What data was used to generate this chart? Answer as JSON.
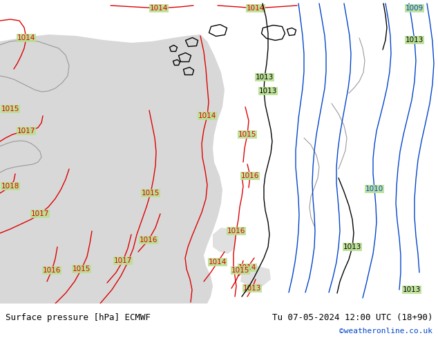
{
  "title_left": "Surface pressure [hPa] ECMWF",
  "title_right": "Tu 07-05-2024 12:00 UTC (18+90)",
  "credit": "©weatheronline.co.uk",
  "bg_color": "#b8e090",
  "sea_color": "#d8d8d8",
  "sea2_color": "#e0e0e0",
  "contour_red_color": "#dd0000",
  "contour_blue_color": "#0044cc",
  "contour_black_color": "#000000",
  "contour_gray_color": "#999999",
  "footer_bg": "#ffffff",
  "label_fontsize": 7.5,
  "footer_fontsize": 9,
  "credit_fontsize": 8,
  "credit_color": "#0044cc",
  "fig_width": 6.34,
  "fig_height": 4.9,
  "dpi": 100
}
